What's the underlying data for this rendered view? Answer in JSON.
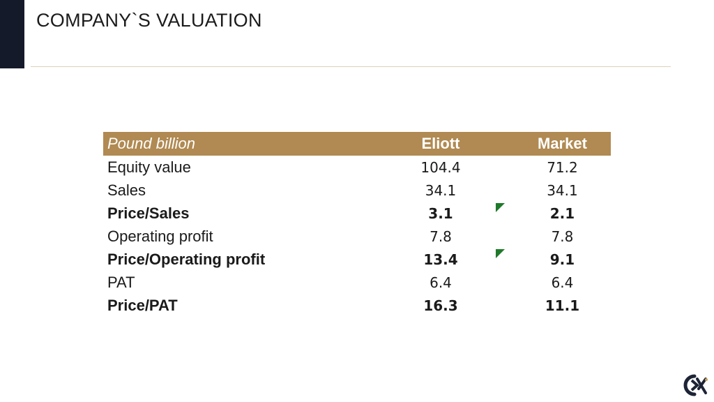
{
  "slide": {
    "title": "COMPANY`S VALUATION"
  },
  "table": {
    "header": {
      "unit": "Pound billion",
      "col1": "Eliott",
      "col2": "Market"
    },
    "rows": [
      {
        "label": "Equity value",
        "eliott": "104.4",
        "market": "71.2"
      },
      {
        "label": "Sales",
        "eliott": "34.1",
        "market": "34.1"
      },
      {
        "label": "Price/Sales",
        "eliott": "3.1",
        "market": "2.1"
      },
      {
        "label": "Operating profit",
        "eliott": "7.8",
        "market": "7.8"
      },
      {
        "label": "Price/Operating profit",
        "eliott": "13.4",
        "market": "9.1"
      },
      {
        "label": "PAT",
        "eliott": "6.4",
        "market": "6.4"
      },
      {
        "label": "Price/PAT",
        "eliott": "16.3",
        "market": "11.1"
      }
    ]
  },
  "colors": {
    "header_bg": "#b08a52",
    "accent_bar": "#151a2b",
    "flag": "#1e7a2a"
  },
  "logo": {
    "icon": "company-logo-icon"
  }
}
